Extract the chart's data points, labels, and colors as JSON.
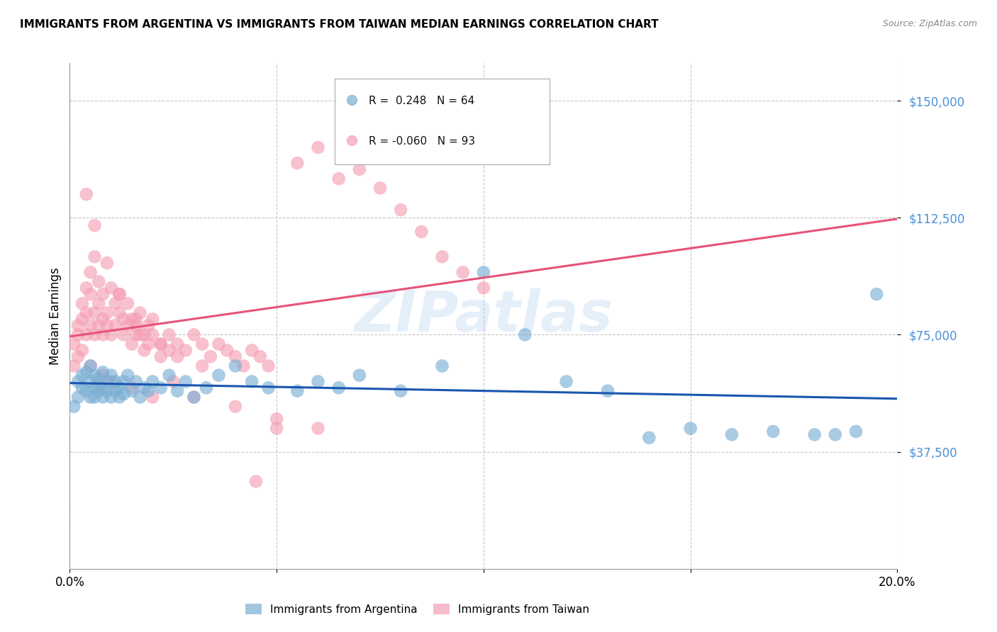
{
  "title": "IMMIGRANTS FROM ARGENTINA VS IMMIGRANTS FROM TAIWAN MEDIAN EARNINGS CORRELATION CHART",
  "source": "Source: ZipAtlas.com",
  "ylabel": "Median Earnings",
  "xlim": [
    0.0,
    0.2
  ],
  "ylim": [
    0,
    162000
  ],
  "yticks": [
    37500,
    75000,
    112500,
    150000
  ],
  "ytick_labels": [
    "$37,500",
    "$75,000",
    "$112,500",
    "$150,000"
  ],
  "xticks": [
    0.0,
    0.05,
    0.1,
    0.15,
    0.2
  ],
  "xtick_labels": [
    "0.0%",
    "",
    "",
    "",
    "20.0%"
  ],
  "legend_argentina_label": "Immigrants from Argentina",
  "legend_taiwan_label": "Immigrants from Taiwan",
  "argentina_color": "#7BAFD4",
  "taiwan_color": "#F4A0B5",
  "argentina_line_color": "#1A56B0",
  "taiwan_line_color": "#E8527A",
  "watermark": "ZIPatlas",
  "argentina_R": 0.248,
  "argentina_N": 64,
  "taiwan_R": -0.06,
  "taiwan_N": 93,
  "argentina_x": [
    0.001,
    0.002,
    0.002,
    0.003,
    0.003,
    0.004,
    0.004,
    0.005,
    0.005,
    0.005,
    0.006,
    0.006,
    0.006,
    0.007,
    0.007,
    0.007,
    0.008,
    0.008,
    0.008,
    0.009,
    0.009,
    0.01,
    0.01,
    0.011,
    0.011,
    0.012,
    0.012,
    0.013,
    0.013,
    0.014,
    0.015,
    0.016,
    0.017,
    0.018,
    0.019,
    0.02,
    0.022,
    0.024,
    0.026,
    0.028,
    0.03,
    0.033,
    0.036,
    0.04,
    0.044,
    0.048,
    0.055,
    0.06,
    0.065,
    0.07,
    0.08,
    0.09,
    0.1,
    0.11,
    0.12,
    0.13,
    0.14,
    0.15,
    0.16,
    0.17,
    0.18,
    0.19,
    0.195,
    0.185
  ],
  "argentina_y": [
    52000,
    60000,
    55000,
    62000,
    58000,
    57000,
    63000,
    55000,
    60000,
    65000,
    58000,
    62000,
    55000,
    57000,
    61000,
    59000,
    55000,
    58000,
    63000,
    57000,
    60000,
    55000,
    62000,
    57000,
    60000,
    55000,
    58000,
    56000,
    60000,
    62000,
    57000,
    60000,
    55000,
    58000,
    57000,
    60000,
    58000,
    62000,
    57000,
    60000,
    55000,
    58000,
    62000,
    65000,
    60000,
    58000,
    57000,
    60000,
    58000,
    62000,
    57000,
    65000,
    95000,
    75000,
    60000,
    57000,
    42000,
    45000,
    43000,
    44000,
    43000,
    44000,
    88000,
    43000
  ],
  "taiwan_x": [
    0.001,
    0.001,
    0.002,
    0.002,
    0.002,
    0.003,
    0.003,
    0.003,
    0.004,
    0.004,
    0.004,
    0.005,
    0.005,
    0.005,
    0.006,
    0.006,
    0.006,
    0.007,
    0.007,
    0.007,
    0.008,
    0.008,
    0.008,
    0.009,
    0.009,
    0.01,
    0.01,
    0.011,
    0.011,
    0.012,
    0.012,
    0.013,
    0.013,
    0.014,
    0.014,
    0.015,
    0.015,
    0.016,
    0.016,
    0.017,
    0.017,
    0.018,
    0.018,
    0.019,
    0.019,
    0.02,
    0.02,
    0.022,
    0.022,
    0.024,
    0.024,
    0.026,
    0.026,
    0.028,
    0.03,
    0.032,
    0.034,
    0.036,
    0.038,
    0.04,
    0.042,
    0.044,
    0.046,
    0.048,
    0.05,
    0.055,
    0.06,
    0.065,
    0.07,
    0.075,
    0.08,
    0.085,
    0.09,
    0.095,
    0.1,
    0.005,
    0.008,
    0.01,
    0.015,
    0.02,
    0.025,
    0.03,
    0.04,
    0.05,
    0.06,
    0.004,
    0.006,
    0.009,
    0.012,
    0.016,
    0.022,
    0.032,
    0.045
  ],
  "taiwan_y": [
    65000,
    72000,
    78000,
    68000,
    75000,
    80000,
    70000,
    85000,
    75000,
    82000,
    90000,
    78000,
    88000,
    95000,
    75000,
    82000,
    100000,
    85000,
    92000,
    78000,
    80000,
    75000,
    88000,
    82000,
    78000,
    90000,
    75000,
    85000,
    78000,
    82000,
    88000,
    75000,
    80000,
    78000,
    85000,
    72000,
    80000,
    75000,
    78000,
    82000,
    75000,
    70000,
    75000,
    78000,
    72000,
    75000,
    80000,
    72000,
    68000,
    75000,
    70000,
    72000,
    68000,
    70000,
    75000,
    72000,
    68000,
    72000,
    70000,
    68000,
    65000,
    70000,
    68000,
    65000,
    45000,
    130000,
    135000,
    125000,
    128000,
    122000,
    115000,
    108000,
    100000,
    95000,
    90000,
    65000,
    62000,
    60000,
    58000,
    55000,
    60000,
    55000,
    52000,
    48000,
    45000,
    120000,
    110000,
    98000,
    88000,
    80000,
    72000,
    65000,
    28000
  ]
}
